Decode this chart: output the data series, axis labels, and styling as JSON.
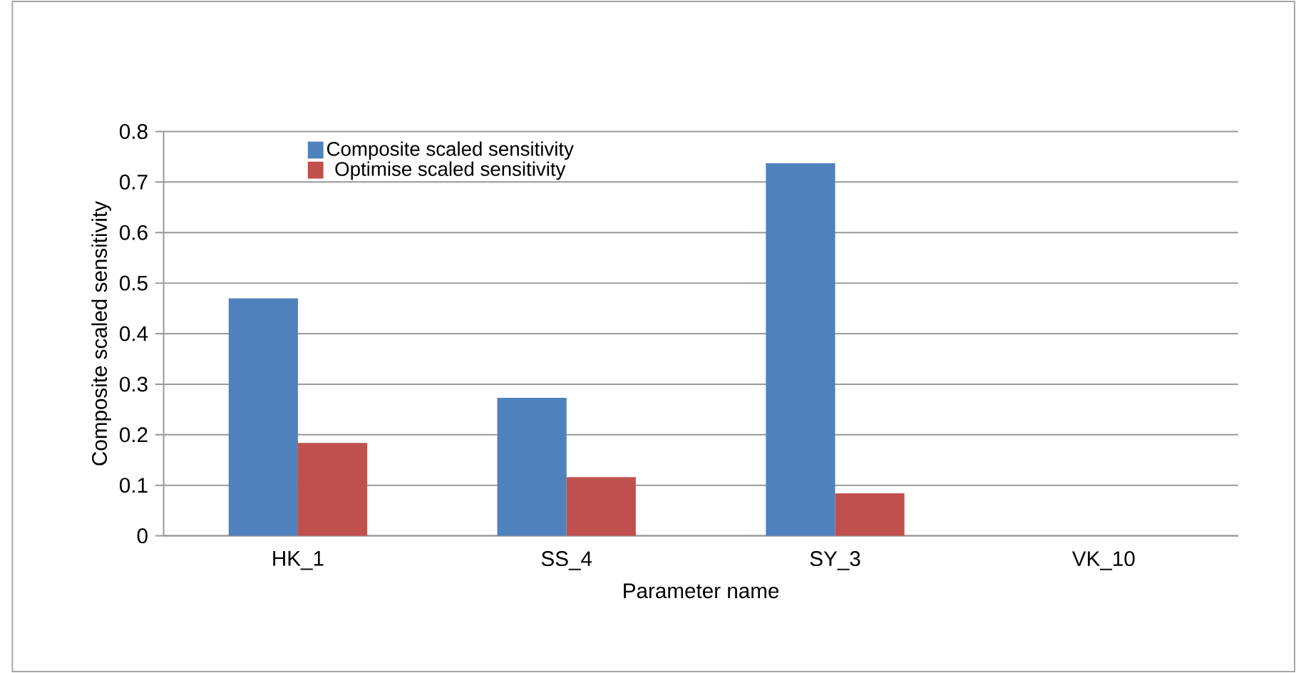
{
  "chart_data": {
    "type": "bar",
    "xlabel": "Parameter name",
    "ylabel": "Composite scaled sensitivity",
    "categories": [
      "HK_1",
      "SS_4",
      "SY_3",
      "VK_10"
    ],
    "series": [
      {
        "name": "Composite scaled sensitivity",
        "color": "#4f81bd",
        "values": [
          0.47,
          0.273,
          0.737,
          0
        ]
      },
      {
        "name": "Optimise scaled sensitivity",
        "color": "#c0504d",
        "values": [
          0.184,
          0.116,
          0.084,
          0
        ]
      }
    ],
    "ylim": [
      0,
      0.8
    ],
    "yticks": [
      0,
      0.1,
      0.2,
      0.3,
      0.4,
      0.5,
      0.6,
      0.7,
      0.8
    ],
    "grid": "y",
    "legend": "top left"
  }
}
